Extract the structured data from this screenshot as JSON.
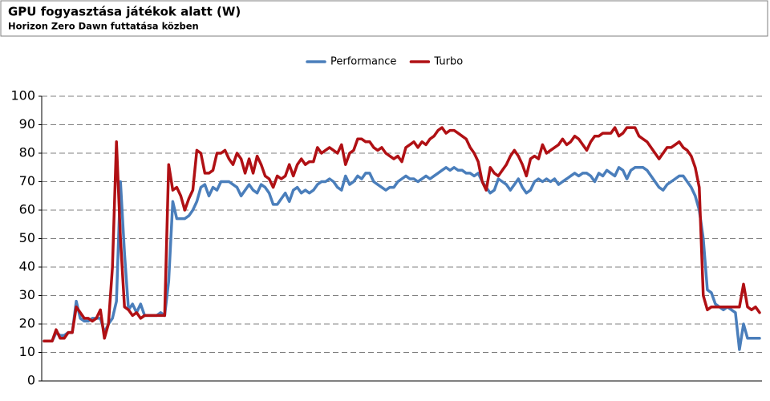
{
  "chart_data": {
    "type": "line",
    "title": "GPU fogyasztása játékok alatt (W)",
    "subtitle": "Horizon Zero Dawn futtatása közben",
    "ylim": [
      0,
      100
    ],
    "yticks": [
      0,
      10,
      20,
      30,
      40,
      50,
      60,
      70,
      80,
      90,
      100
    ],
    "grid": true,
    "legend": "top",
    "series": [
      {
        "name": "Performance",
        "color": "#4a7ebb",
        "values": [
          14,
          14,
          14,
          17,
          16,
          16,
          17,
          17,
          28,
          22,
          21,
          21,
          22,
          22,
          22,
          17,
          20,
          22,
          28,
          70,
          45,
          25,
          27,
          24,
          27,
          23,
          23,
          23,
          23,
          24,
          23,
          35,
          63,
          57,
          57,
          57,
          58,
          60,
          63,
          68,
          69,
          65,
          68,
          67,
          70,
          70,
          70,
          69,
          68,
          65,
          67,
          69,
          67,
          66,
          69,
          68,
          66,
          62,
          62,
          64,
          66,
          63,
          67,
          68,
          66,
          67,
          66,
          67,
          69,
          70,
          70,
          71,
          70,
          68,
          67,
          72,
          69,
          70,
          72,
          71,
          73,
          73,
          70,
          69,
          68,
          67,
          68,
          68,
          70,
          71,
          72,
          71,
          71,
          70,
          71,
          72,
          71,
          72,
          73,
          74,
          75,
          74,
          75,
          74,
          74,
          73,
          73,
          72,
          73,
          70,
          68,
          66,
          67,
          71,
          70,
          69,
          67,
          69,
          71,
          68,
          66,
          67,
          70,
          71,
          70,
          71,
          70,
          71,
          69,
          70,
          71,
          72,
          73,
          72,
          73,
          73,
          72,
          70,
          73,
          72,
          74,
          73,
          72,
          75,
          74,
          71,
          74,
          75,
          75,
          75,
          74,
          72,
          70,
          68,
          67,
          69,
          70,
          71,
          72,
          72,
          70,
          68,
          65,
          60,
          50,
          32,
          31,
          27,
          26,
          25,
          26,
          25,
          24,
          11,
          20,
          15,
          15,
          15,
          15
        ]
      },
      {
        "name": "Turbo",
        "color": "#b01014",
        "values": [
          14,
          14,
          14,
          18,
          15,
          15,
          17,
          17,
          26,
          24,
          22,
          22,
          21,
          22,
          25,
          15,
          20,
          40,
          84,
          50,
          26,
          25,
          23,
          24,
          22,
          23,
          23,
          23,
          23,
          23,
          23,
          76,
          67,
          68,
          65,
          60,
          64,
          67,
          81,
          80,
          73,
          73,
          74,
          80,
          80,
          81,
          78,
          76,
          80,
          78,
          73,
          78,
          73,
          79,
          76,
          72,
          71,
          68,
          72,
          71,
          72,
          76,
          72,
          76,
          78,
          76,
          77,
          77,
          82,
          80,
          81,
          82,
          81,
          80,
          83,
          76,
          80,
          81,
          85,
          85,
          84,
          84,
          82,
          81,
          82,
          80,
          79,
          78,
          79,
          77,
          82,
          83,
          84,
          82,
          84,
          83,
          85,
          86,
          88,
          89,
          87,
          88,
          88,
          87,
          86,
          85,
          82,
          80,
          77,
          70,
          67,
          75,
          73,
          72,
          74,
          76,
          79,
          81,
          79,
          76,
          72,
          78,
          79,
          78,
          83,
          80,
          81,
          82,
          83,
          85,
          83,
          84,
          86,
          85,
          83,
          81,
          84,
          86,
          86,
          87,
          87,
          87,
          89,
          86,
          87,
          89,
          89,
          89,
          86,
          85,
          84,
          82,
          80,
          78,
          80,
          82,
          82,
          83,
          84,
          82,
          81,
          79,
          75,
          68,
          30,
          25,
          26,
          26,
          26,
          26,
          26,
          26,
          26,
          26,
          34,
          26,
          25,
          26,
          24
        ]
      }
    ]
  }
}
